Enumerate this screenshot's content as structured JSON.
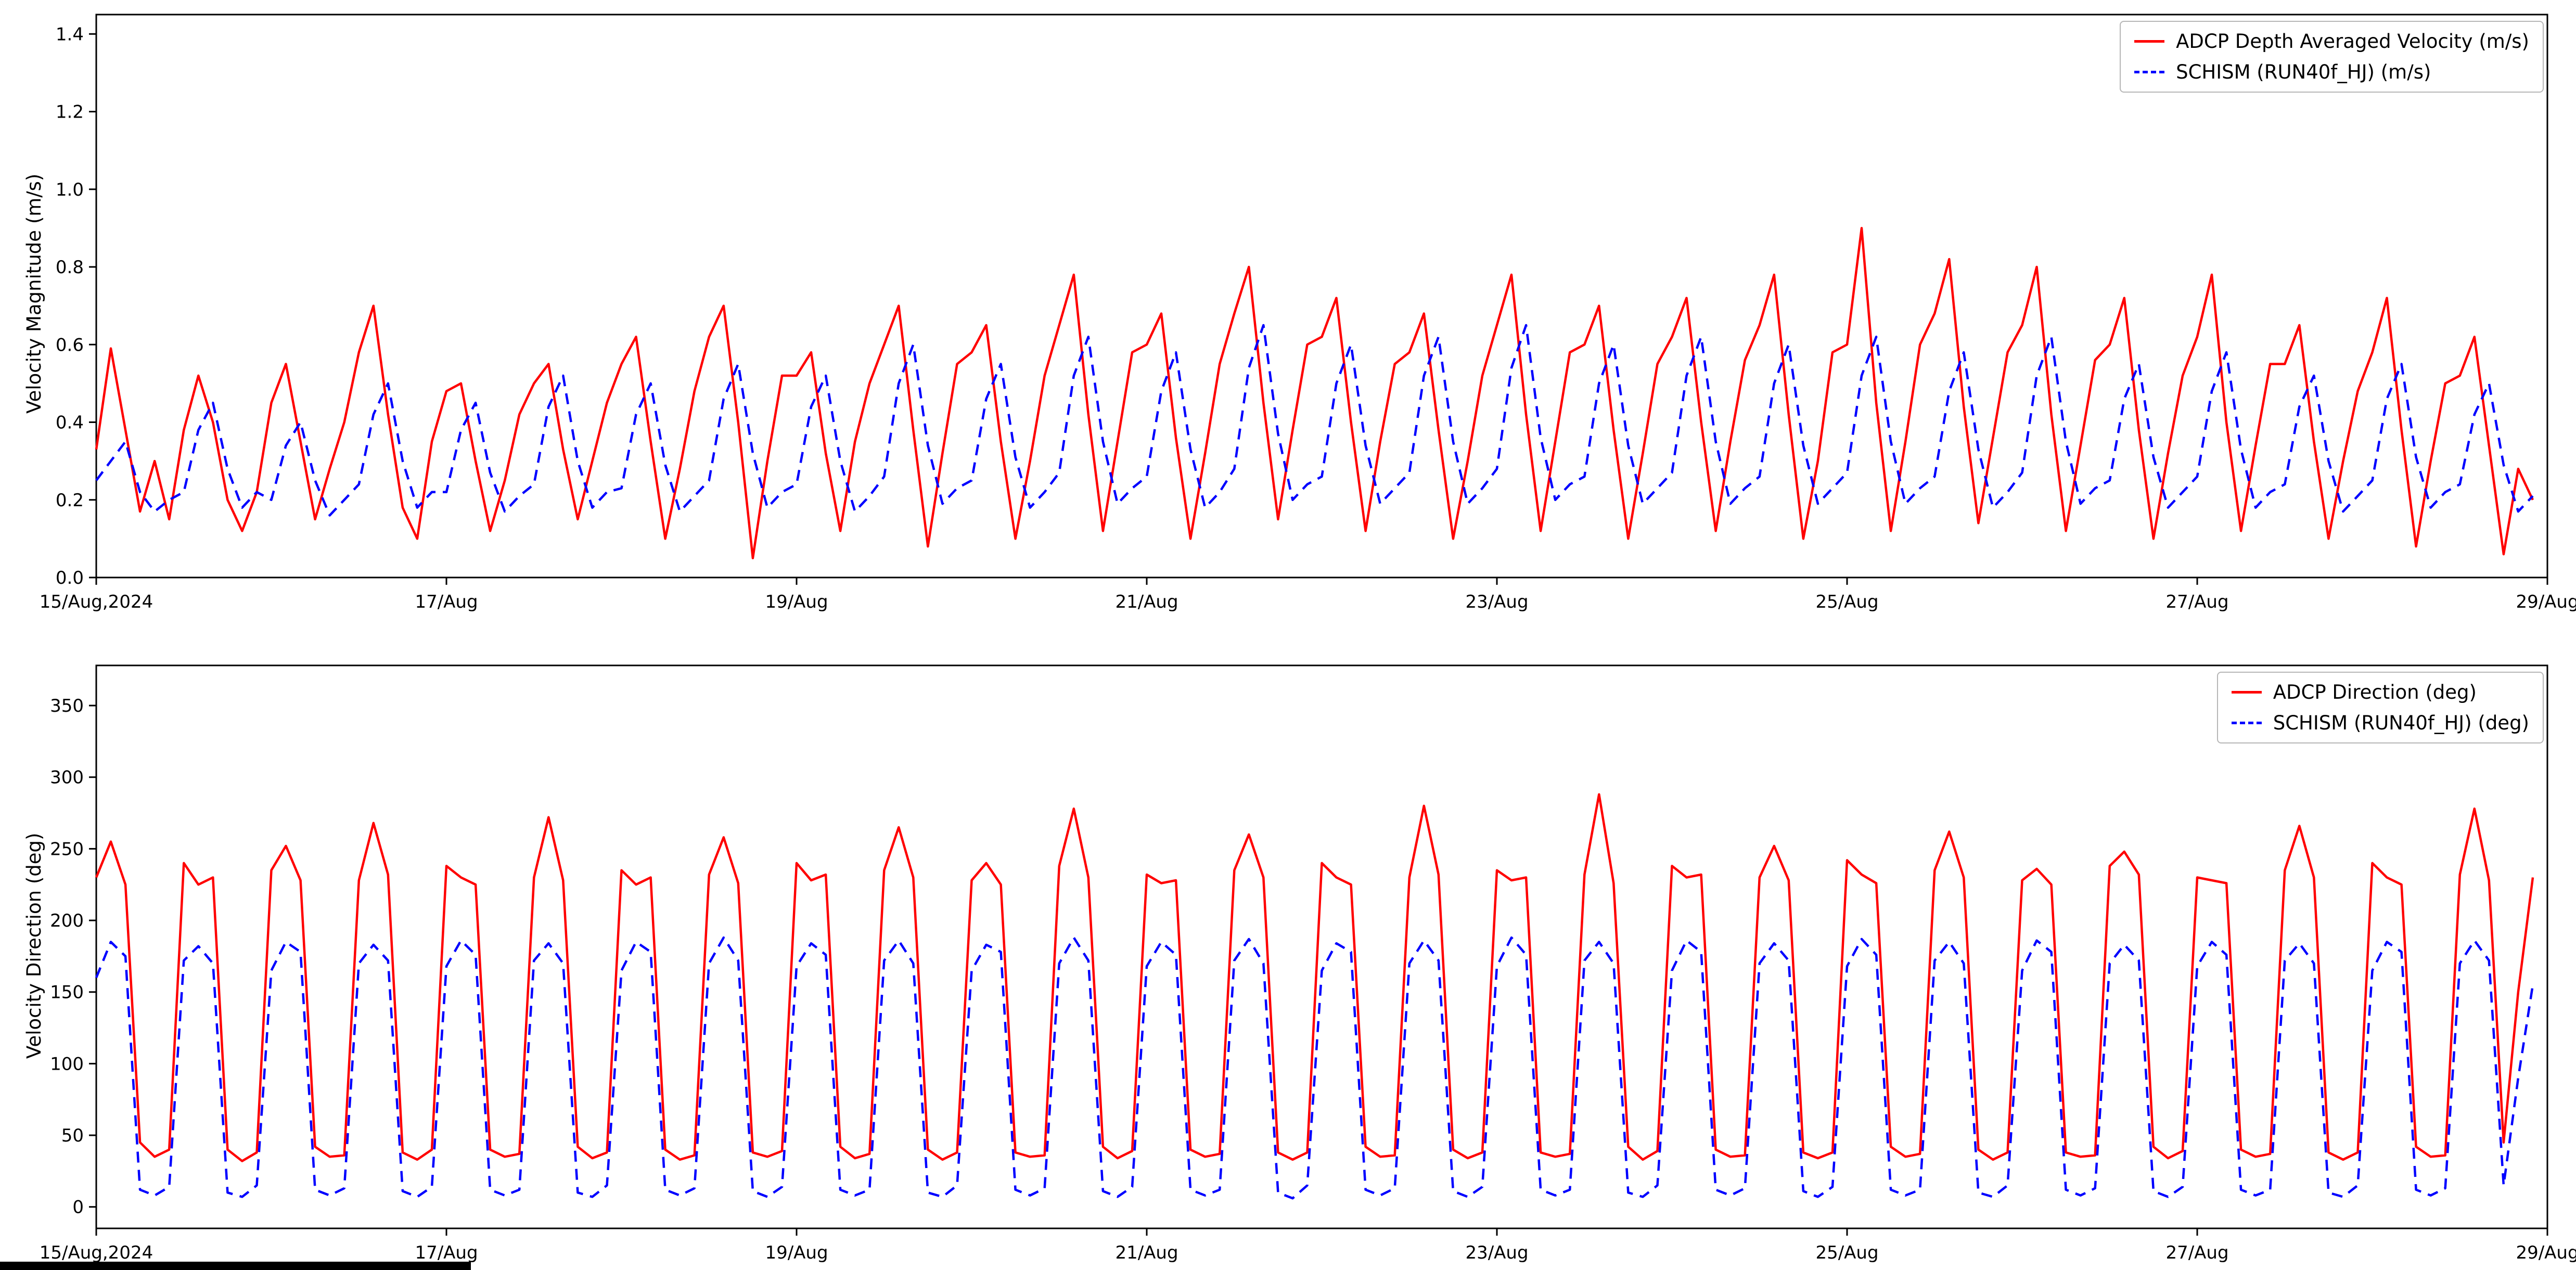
{
  "figure": {
    "background": "#ffffff"
  },
  "chart_data": [
    {
      "id": "velocity_magnitude",
      "type": "line",
      "title": "",
      "ylabel": "Velocity Magnitude (m/s)",
      "xlabel": "",
      "ylim": [
        0,
        1.45
      ],
      "yticks": [
        0.0,
        0.2,
        0.4,
        0.6,
        0.8,
        1.0,
        1.2,
        1.4
      ],
      "ytick_labels": [
        "0.0",
        "0.2",
        "0.4",
        "0.6",
        "0.8",
        "1.0",
        "1.2",
        "1.4"
      ],
      "xlim": [
        0,
        336
      ],
      "xticks": [
        0,
        48,
        96,
        144,
        192,
        240,
        288,
        336
      ],
      "xtick_labels": [
        "15/Aug,2024",
        "17/Aug",
        "19/Aug",
        "21/Aug",
        "23/Aug",
        "25/Aug",
        "27/Aug",
        "29/Aug"
      ],
      "x": {
        "start": 0,
        "step": 2,
        "count": 168,
        "unit": "hours since 2024-08-15 00:00"
      },
      "grid": false,
      "legend_position": "top-right",
      "series": [
        {
          "key": "adcp_velocity",
          "name": "ADCP Depth Averaged Velocity (m/s)",
          "color": "#ff0000",
          "dash": "solid",
          "values": [
            0.33,
            0.59,
            0.38,
            0.17,
            0.3,
            0.15,
            0.38,
            0.52,
            0.4,
            0.2,
            0.12,
            0.22,
            0.45,
            0.55,
            0.35,
            0.15,
            0.28,
            0.4,
            0.58,
            0.7,
            0.42,
            0.18,
            0.1,
            0.35,
            0.48,
            0.5,
            0.3,
            0.12,
            0.25,
            0.42,
            0.5,
            0.55,
            0.33,
            0.15,
            0.3,
            0.45,
            0.55,
            0.62,
            0.35,
            0.1,
            0.28,
            0.48,
            0.62,
            0.7,
            0.4,
            0.05,
            0.3,
            0.52,
            0.52,
            0.58,
            0.32,
            0.12,
            0.35,
            0.5,
            0.6,
            0.7,
            0.38,
            0.08,
            0.32,
            0.55,
            0.58,
            0.65,
            0.35,
            0.1,
            0.3,
            0.52,
            0.65,
            0.78,
            0.42,
            0.12,
            0.35,
            0.58,
            0.6,
            0.68,
            0.36,
            0.1,
            0.32,
            0.55,
            0.68,
            0.8,
            0.45,
            0.15,
            0.38,
            0.6,
            0.62,
            0.72,
            0.4,
            0.12,
            0.35,
            0.55,
            0.58,
            0.68,
            0.38,
            0.1,
            0.3,
            0.52,
            0.65,
            0.78,
            0.42,
            0.12,
            0.35,
            0.58,
            0.6,
            0.7,
            0.38,
            0.1,
            0.32,
            0.55,
            0.62,
            0.72,
            0.4,
            0.12,
            0.35,
            0.56,
            0.65,
            0.78,
            0.42,
            0.1,
            0.3,
            0.58,
            0.6,
            0.9,
            0.45,
            0.12,
            0.35,
            0.6,
            0.68,
            0.82,
            0.44,
            0.14,
            0.36,
            0.58,
            0.65,
            0.8,
            0.42,
            0.12,
            0.34,
            0.56,
            0.6,
            0.72,
            0.38,
            0.1,
            0.32,
            0.52,
            0.62,
            0.78,
            0.4,
            0.12,
            0.34,
            0.55,
            0.55,
            0.65,
            0.35,
            0.1,
            0.3,
            0.48,
            0.58,
            0.72,
            0.38,
            0.08,
            0.3,
            0.5,
            0.52,
            0.62,
            0.34,
            0.06,
            0.28,
            0.2
          ]
        },
        {
          "key": "schism_velocity",
          "name": "SCHISM (RUN40f_HJ) (m/s)",
          "color": "#0000ff",
          "dash": "dashed",
          "values": [
            0.25,
            0.3,
            0.35,
            0.22,
            0.17,
            0.2,
            0.22,
            0.38,
            0.45,
            0.28,
            0.18,
            0.22,
            0.2,
            0.34,
            0.4,
            0.25,
            0.16,
            0.2,
            0.24,
            0.42,
            0.5,
            0.3,
            0.18,
            0.22,
            0.22,
            0.38,
            0.45,
            0.27,
            0.17,
            0.21,
            0.24,
            0.44,
            0.52,
            0.3,
            0.18,
            0.22,
            0.23,
            0.42,
            0.5,
            0.29,
            0.17,
            0.21,
            0.25,
            0.46,
            0.55,
            0.32,
            0.18,
            0.22,
            0.24,
            0.44,
            0.52,
            0.3,
            0.17,
            0.21,
            0.26,
            0.5,
            0.6,
            0.34,
            0.19,
            0.23,
            0.25,
            0.46,
            0.55,
            0.31,
            0.18,
            0.22,
            0.27,
            0.52,
            0.62,
            0.35,
            0.19,
            0.23,
            0.26,
            0.48,
            0.58,
            0.33,
            0.18,
            0.22,
            0.28,
            0.54,
            0.65,
            0.37,
            0.2,
            0.24,
            0.26,
            0.5,
            0.6,
            0.34,
            0.19,
            0.23,
            0.27,
            0.52,
            0.62,
            0.35,
            0.19,
            0.23,
            0.28,
            0.54,
            0.65,
            0.36,
            0.2,
            0.24,
            0.26,
            0.5,
            0.6,
            0.34,
            0.19,
            0.23,
            0.27,
            0.52,
            0.62,
            0.35,
            0.19,
            0.23,
            0.26,
            0.5,
            0.6,
            0.34,
            0.19,
            0.23,
            0.27,
            0.52,
            0.62,
            0.35,
            0.19,
            0.23,
            0.26,
            0.48,
            0.58,
            0.33,
            0.18,
            0.22,
            0.27,
            0.52,
            0.62,
            0.35,
            0.19,
            0.23,
            0.25,
            0.46,
            0.55,
            0.31,
            0.18,
            0.22,
            0.26,
            0.48,
            0.58,
            0.33,
            0.18,
            0.22,
            0.24,
            0.44,
            0.52,
            0.3,
            0.17,
            0.21,
            0.25,
            0.46,
            0.55,
            0.31,
            0.18,
            0.22,
            0.24,
            0.42,
            0.5,
            0.29,
            0.17,
            0.21
          ]
        }
      ]
    },
    {
      "id": "velocity_direction",
      "type": "line",
      "title": "",
      "ylabel": "Velocity Direction (deg)",
      "xlabel": "",
      "ylim": [
        -15,
        378
      ],
      "yticks": [
        0,
        50,
        100,
        150,
        200,
        250,
        300,
        350
      ],
      "ytick_labels": [
        "0",
        "50",
        "100",
        "150",
        "200",
        "250",
        "300",
        "350"
      ],
      "xlim": [
        0,
        336
      ],
      "xticks": [
        0,
        48,
        96,
        144,
        192,
        240,
        288,
        336
      ],
      "xtick_labels": [
        "15/Aug,2024",
        "17/Aug",
        "19/Aug",
        "21/Aug",
        "23/Aug",
        "25/Aug",
        "27/Aug",
        "29/Aug"
      ],
      "x": {
        "start": 0,
        "step": 2,
        "count": 168,
        "unit": "hours since 2024-08-15 00:00"
      },
      "grid": false,
      "legend_position": "top-right",
      "series": [
        {
          "key": "adcp_direction",
          "name": "ADCP Direction (deg)",
          "color": "#ff0000",
          "dash": "solid",
          "values": [
            230,
            255,
            225,
            45,
            35,
            40,
            240,
            225,
            230,
            40,
            32,
            38,
            235,
            252,
            228,
            42,
            35,
            36,
            228,
            268,
            232,
            38,
            33,
            40,
            238,
            230,
            225,
            40,
            35,
            37,
            230,
            272,
            228,
            42,
            34,
            38,
            235,
            225,
            230,
            40,
            33,
            36,
            232,
            258,
            226,
            38,
            35,
            39,
            240,
            228,
            232,
            42,
            34,
            37,
            235,
            265,
            230,
            40,
            33,
            38,
            228,
            240,
            225,
            38,
            35,
            36,
            238,
            278,
            230,
            42,
            34,
            39,
            232,
            226,
            228,
            40,
            35,
            37,
            235,
            260,
            230,
            38,
            33,
            38,
            240,
            230,
            225,
            42,
            35,
            36,
            230,
            280,
            232,
            40,
            34,
            38,
            235,
            228,
            230,
            38,
            35,
            37,
            232,
            288,
            226,
            42,
            33,
            39,
            238,
            230,
            232,
            40,
            35,
            36,
            230,
            252,
            228,
            38,
            34,
            38,
            242,
            232,
            226,
            42,
            35,
            37,
            235,
            262,
            230,
            40,
            33,
            38,
            228,
            236,
            225,
            38,
            35,
            36,
            238,
            248,
            232,
            42,
            34,
            39,
            230,
            228,
            226,
            40,
            35,
            37,
            235,
            266,
            230,
            38,
            33,
            38,
            240,
            230,
            225,
            42,
            35,
            36,
            232,
            278,
            228,
            45,
            150,
            230
          ]
        },
        {
          "key": "schism_direction",
          "name": "SCHISM (RUN40f_HJ) (deg)",
          "color": "#0000ff",
          "dash": "dashed",
          "values": [
            160,
            185,
            175,
            12,
            8,
            14,
            172,
            182,
            170,
            10,
            7,
            15,
            165,
            185,
            178,
            12,
            8,
            13,
            170,
            183,
            172,
            11,
            7,
            14,
            168,
            186,
            176,
            12,
            8,
            12,
            172,
            184,
            170,
            10,
            7,
            15,
            165,
            185,
            178,
            12,
            8,
            13,
            170,
            188,
            172,
            11,
            7,
            14,
            168,
            184,
            176,
            12,
            8,
            12,
            172,
            186,
            170,
            10,
            7,
            15,
            165,
            183,
            178,
            12,
            8,
            13,
            170,
            188,
            172,
            11,
            7,
            14,
            168,
            185,
            176,
            12,
            8,
            12,
            172,
            187,
            170,
            10,
            6,
            15,
            165,
            184,
            178,
            12,
            8,
            13,
            170,
            186,
            172,
            11,
            7,
            14,
            168,
            188,
            176,
            12,
            8,
            12,
            172,
            185,
            170,
            10,
            7,
            15,
            165,
            186,
            178,
            12,
            8,
            13,
            170,
            184,
            172,
            11,
            7,
            14,
            168,
            187,
            176,
            12,
            8,
            12,
            172,
            185,
            170,
            10,
            7,
            15,
            165,
            186,
            178,
            12,
            8,
            13,
            170,
            183,
            172,
            11,
            7,
            14,
            168,
            185,
            176,
            12,
            8,
            12,
            172,
            184,
            170,
            10,
            7,
            15,
            165,
            185,
            178,
            12,
            8,
            13,
            170,
            186,
            172,
            15,
            90,
            155
          ]
        }
      ]
    }
  ]
}
